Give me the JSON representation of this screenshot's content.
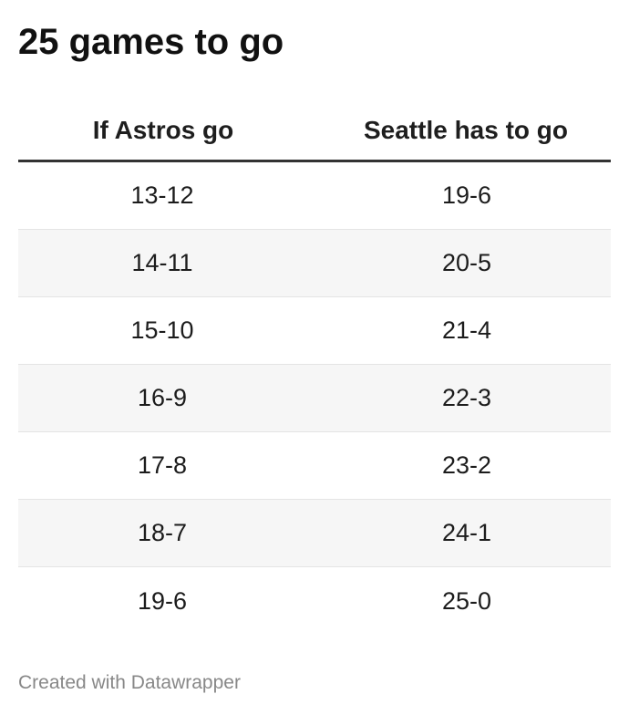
{
  "title": "25 games to go",
  "table": {
    "headers": [
      "If Astros go",
      "Seattle has to go"
    ],
    "rows": [
      [
        "13-12",
        "19-6"
      ],
      [
        "14-11",
        "20-5"
      ],
      [
        "15-10",
        "21-4"
      ],
      [
        "16-9",
        "22-3"
      ],
      [
        "17-8",
        "23-2"
      ],
      [
        "18-7",
        "24-1"
      ],
      [
        "19-6",
        "25-0"
      ]
    ]
  },
  "footer": "Created with Datawrapper"
}
